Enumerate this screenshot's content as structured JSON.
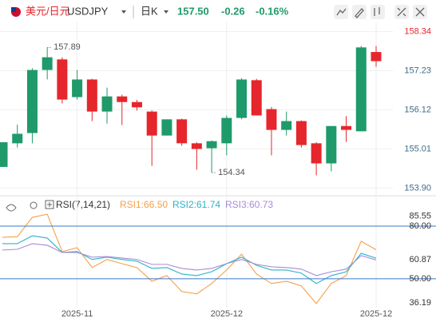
{
  "header": {
    "pair": "美元/日元",
    "symbol": "USDJPY",
    "period": "日K",
    "price": "157.50",
    "change": "-0.26",
    "change_pct": "-0.16%"
  },
  "chart_data": [
    {
      "type": "candlestick",
      "categories": [
        null,
        null,
        null,
        null,
        null,
        "2025-11",
        null,
        null,
        null,
        null,
        null,
        null,
        null,
        null,
        null,
        "2025-12",
        null,
        null,
        null,
        null,
        null,
        null,
        null,
        null,
        null,
        "2025-12"
      ],
      "open": [
        154.5,
        155.17,
        155.46,
        157.25,
        157.55,
        156.48,
        156.98,
        156.07,
        156.5,
        156.34,
        156.07,
        155.39,
        155.85,
        155.17,
        155.03,
        155.17,
        155.89,
        156.96,
        156.14,
        155.55,
        155.8,
        155.17,
        154.6,
        155.66,
        155.51,
        157.76
      ],
      "high": [
        155.2,
        155.7,
        157.3,
        157.89,
        157.61,
        157.25,
        157.0,
        156.75,
        156.55,
        156.4,
        156.1,
        155.85,
        155.87,
        155.2,
        155.25,
        155.96,
        157.02,
        157.0,
        156.2,
        156.07,
        155.82,
        155.2,
        155.66,
        155.94,
        157.93,
        157.93
      ],
      "low": [
        154.5,
        155.05,
        155.17,
        156.98,
        156.3,
        156.41,
        155.8,
        155.73,
        155.69,
        156.1,
        154.53,
        155.39,
        155.1,
        154.42,
        154.34,
        154.83,
        155.85,
        155.96,
        154.83,
        155.39,
        155.05,
        154.26,
        154.37,
        155.21,
        155.51,
        157.34
      ],
      "close": [
        155.2,
        155.44,
        157.25,
        157.61,
        156.41,
        156.98,
        156.07,
        156.5,
        156.34,
        156.19,
        155.39,
        155.85,
        155.17,
        155.01,
        155.23,
        155.89,
        156.98,
        155.96,
        155.55,
        155.8,
        155.12,
        154.6,
        155.66,
        155.55,
        157.89,
        157.5
      ],
      "up_color": "#1f9a6b",
      "down_color": "#e5262c",
      "ylim": [
        153.75,
        158.6
      ],
      "yticks": [
        158.34,
        157.23,
        156.12,
        155.01,
        {
          "value": 153.9,
          "label": "153.90"
        }
      ],
      "grid": true,
      "annotations": [
        {
          "text": "157.89",
          "value": 157.89,
          "x": 3
        },
        {
          "text": "154.34",
          "value": 154.34,
          "x": 14
        }
      ]
    },
    {
      "type": "line",
      "title": "RSI(7,14,21)",
      "series": [
        {
          "name": "RSI1:66.50",
          "color": "#f5a04a",
          "values": [
            73.6,
            74,
            85,
            86.8,
            65.5,
            67.7,
            56.4,
            61,
            58.6,
            56.4,
            48.6,
            51.8,
            42.7,
            41.4,
            47.3,
            55,
            64,
            52.7,
            47.3,
            48.6,
            45.9,
            35.9,
            47.3,
            51.8,
            71.4,
            66.5
          ]
        },
        {
          "name": "RSI2:61.74",
          "color": "#2bb3c8",
          "values": [
            70,
            70,
            74.5,
            73.2,
            65,
            65.5,
            61,
            62.3,
            61,
            60,
            55.9,
            56.4,
            52.7,
            51.8,
            54,
            58.6,
            62.3,
            57.7,
            55,
            55,
            53.2,
            47.3,
            51.8,
            54,
            64.5,
            61.74
          ]
        },
        {
          "name": "RSI3:60.73",
          "color": "#a98ad6",
          "values": [
            66.4,
            66.8,
            70,
            69.1,
            65,
            65,
            62.3,
            62.7,
            61.8,
            61,
            58.2,
            58.2,
            55.9,
            55,
            55.9,
            58.6,
            61,
            58.2,
            56.8,
            56.4,
            55.5,
            51.8,
            54,
            55.5,
            63.2,
            60.73
          ]
        }
      ],
      "ylim": [
        29,
        88.2
      ],
      "yticks": [
        85.55,
        {
          "value": 80,
          "label": "80.00"
        },
        60.87,
        {
          "value": 50,
          "label": "50.00"
        },
        36.19
      ],
      "lines_at": [
        80,
        50
      ],
      "line_color": "#3a78c9"
    }
  ]
}
